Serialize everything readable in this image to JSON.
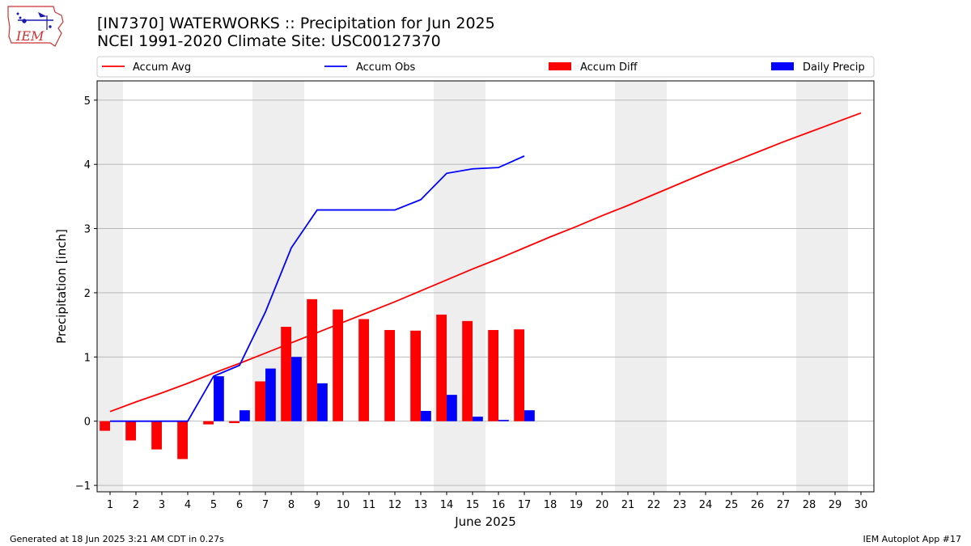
{
  "header": {
    "title": "[IN7370] WATERWORKS :: Precipitation for Jun 2025",
    "subtitle": "NCEI 1991-2020 Climate Site: USC00127370"
  },
  "logo": {
    "text": "IEM"
  },
  "footer": {
    "left": "Generated at 18 Jun 2025 3:21 AM CDT in 0.27s",
    "right": "IEM Autoplot App #17"
  },
  "colors": {
    "avg": "#ff0000",
    "obs": "#0000ff",
    "diff": "#ff0000",
    "daily": "#0000ff",
    "weekend_band": "#eeeeee",
    "grid": "#b0b0b0"
  },
  "chart_data": {
    "type": "bar",
    "xlabel": "June 2025",
    "ylabel": "Precipitation [inch]",
    "xlim": [
      0.5,
      30.5
    ],
    "ylim": [
      -1.1,
      5.3
    ],
    "x_ticks": [
      1,
      2,
      3,
      4,
      5,
      6,
      7,
      8,
      9,
      10,
      11,
      12,
      13,
      14,
      15,
      16,
      17,
      18,
      19,
      20,
      21,
      22,
      23,
      24,
      25,
      26,
      27,
      28,
      29,
      30
    ],
    "y_ticks": [
      -1,
      0,
      1,
      2,
      3,
      4,
      5
    ],
    "grid": "horizontal",
    "legend_position": "top",
    "weekend_bands": [
      [
        1,
        1
      ],
      [
        7,
        8
      ],
      [
        14,
        15
      ],
      [
        21,
        22
      ],
      [
        28,
        29
      ]
    ],
    "series": [
      {
        "name": "Accum Avg",
        "kind": "line",
        "x": [
          1,
          2,
          3,
          4,
          5,
          6,
          7,
          8,
          9,
          10,
          11,
          12,
          13,
          14,
          15,
          16,
          17,
          18,
          19,
          20,
          21,
          22,
          23,
          24,
          25,
          26,
          27,
          28,
          29,
          30
        ],
        "values": [
          0.15,
          0.3,
          0.44,
          0.59,
          0.75,
          0.9,
          1.06,
          1.22,
          1.38,
          1.54,
          1.7,
          1.86,
          2.03,
          2.2,
          2.37,
          2.53,
          2.7,
          2.87,
          3.03,
          3.2,
          3.36,
          3.53,
          3.7,
          3.87,
          4.03,
          4.19,
          4.35,
          4.5,
          4.65,
          4.8
        ]
      },
      {
        "name": "Accum Obs",
        "kind": "line",
        "x": [
          1,
          2,
          3,
          4,
          5,
          6,
          7,
          8,
          9,
          10,
          11,
          12,
          13,
          14,
          15,
          16,
          17
        ],
        "values": [
          0.0,
          0.0,
          0.0,
          0.0,
          0.7,
          0.87,
          1.7,
          2.7,
          3.29,
          3.29,
          3.29,
          3.29,
          3.45,
          3.86,
          3.93,
          3.95,
          4.13
        ]
      },
      {
        "name": "Accum Diff",
        "kind": "bar",
        "x": [
          1,
          2,
          3,
          4,
          5,
          6,
          7,
          8,
          9,
          10,
          11,
          12,
          13,
          14,
          15,
          16,
          17
        ],
        "values": [
          -0.15,
          -0.3,
          -0.44,
          -0.59,
          -0.05,
          -0.03,
          0.62,
          1.47,
          1.9,
          1.74,
          1.59,
          1.42,
          1.41,
          1.66,
          1.56,
          1.42,
          1.43
        ]
      },
      {
        "name": "Daily Precip",
        "kind": "bar",
        "x": [
          1,
          2,
          3,
          4,
          5,
          6,
          7,
          8,
          9,
          10,
          11,
          12,
          13,
          14,
          15,
          16,
          17
        ],
        "values": [
          0,
          0,
          0,
          0,
          0.7,
          0.17,
          0.82,
          1.0,
          0.59,
          0,
          0,
          0,
          0.16,
          0.41,
          0.07,
          0.02,
          0.17
        ]
      }
    ]
  }
}
